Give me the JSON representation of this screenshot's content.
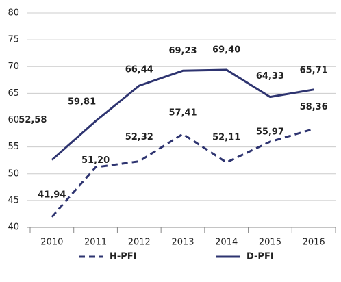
{
  "chart_data": {
    "type": "line",
    "categories": [
      "2010",
      "2011",
      "2012",
      "2013",
      "2014",
      "2015",
      "2016"
    ],
    "series": [
      {
        "name": "H-PFI",
        "color": "#2e3470",
        "dash": true,
        "values": [
          41.94,
          51.2,
          52.32,
          57.41,
          52.11,
          55.97,
          58.36
        ],
        "value_labels": [
          "41,94",
          "51,20",
          "52,32",
          "57,41",
          "52,11",
          "55,97",
          "58,36"
        ]
      },
      {
        "name": "D-PFI",
        "color": "#2e3470",
        "dash": false,
        "values": [
          52.58,
          59.81,
          66.44,
          69.23,
          69.4,
          64.33,
          65.71
        ],
        "value_labels": [
          "52,58",
          "59,81",
          "66,44",
          "69,23",
          "69,40",
          "64,33",
          "65,71"
        ]
      }
    ],
    "ylim": [
      40,
      80
    ],
    "yticks": [
      40,
      45,
      50,
      55,
      60,
      65,
      70,
      75,
      80
    ],
    "grid": true,
    "legend": "bottom"
  }
}
